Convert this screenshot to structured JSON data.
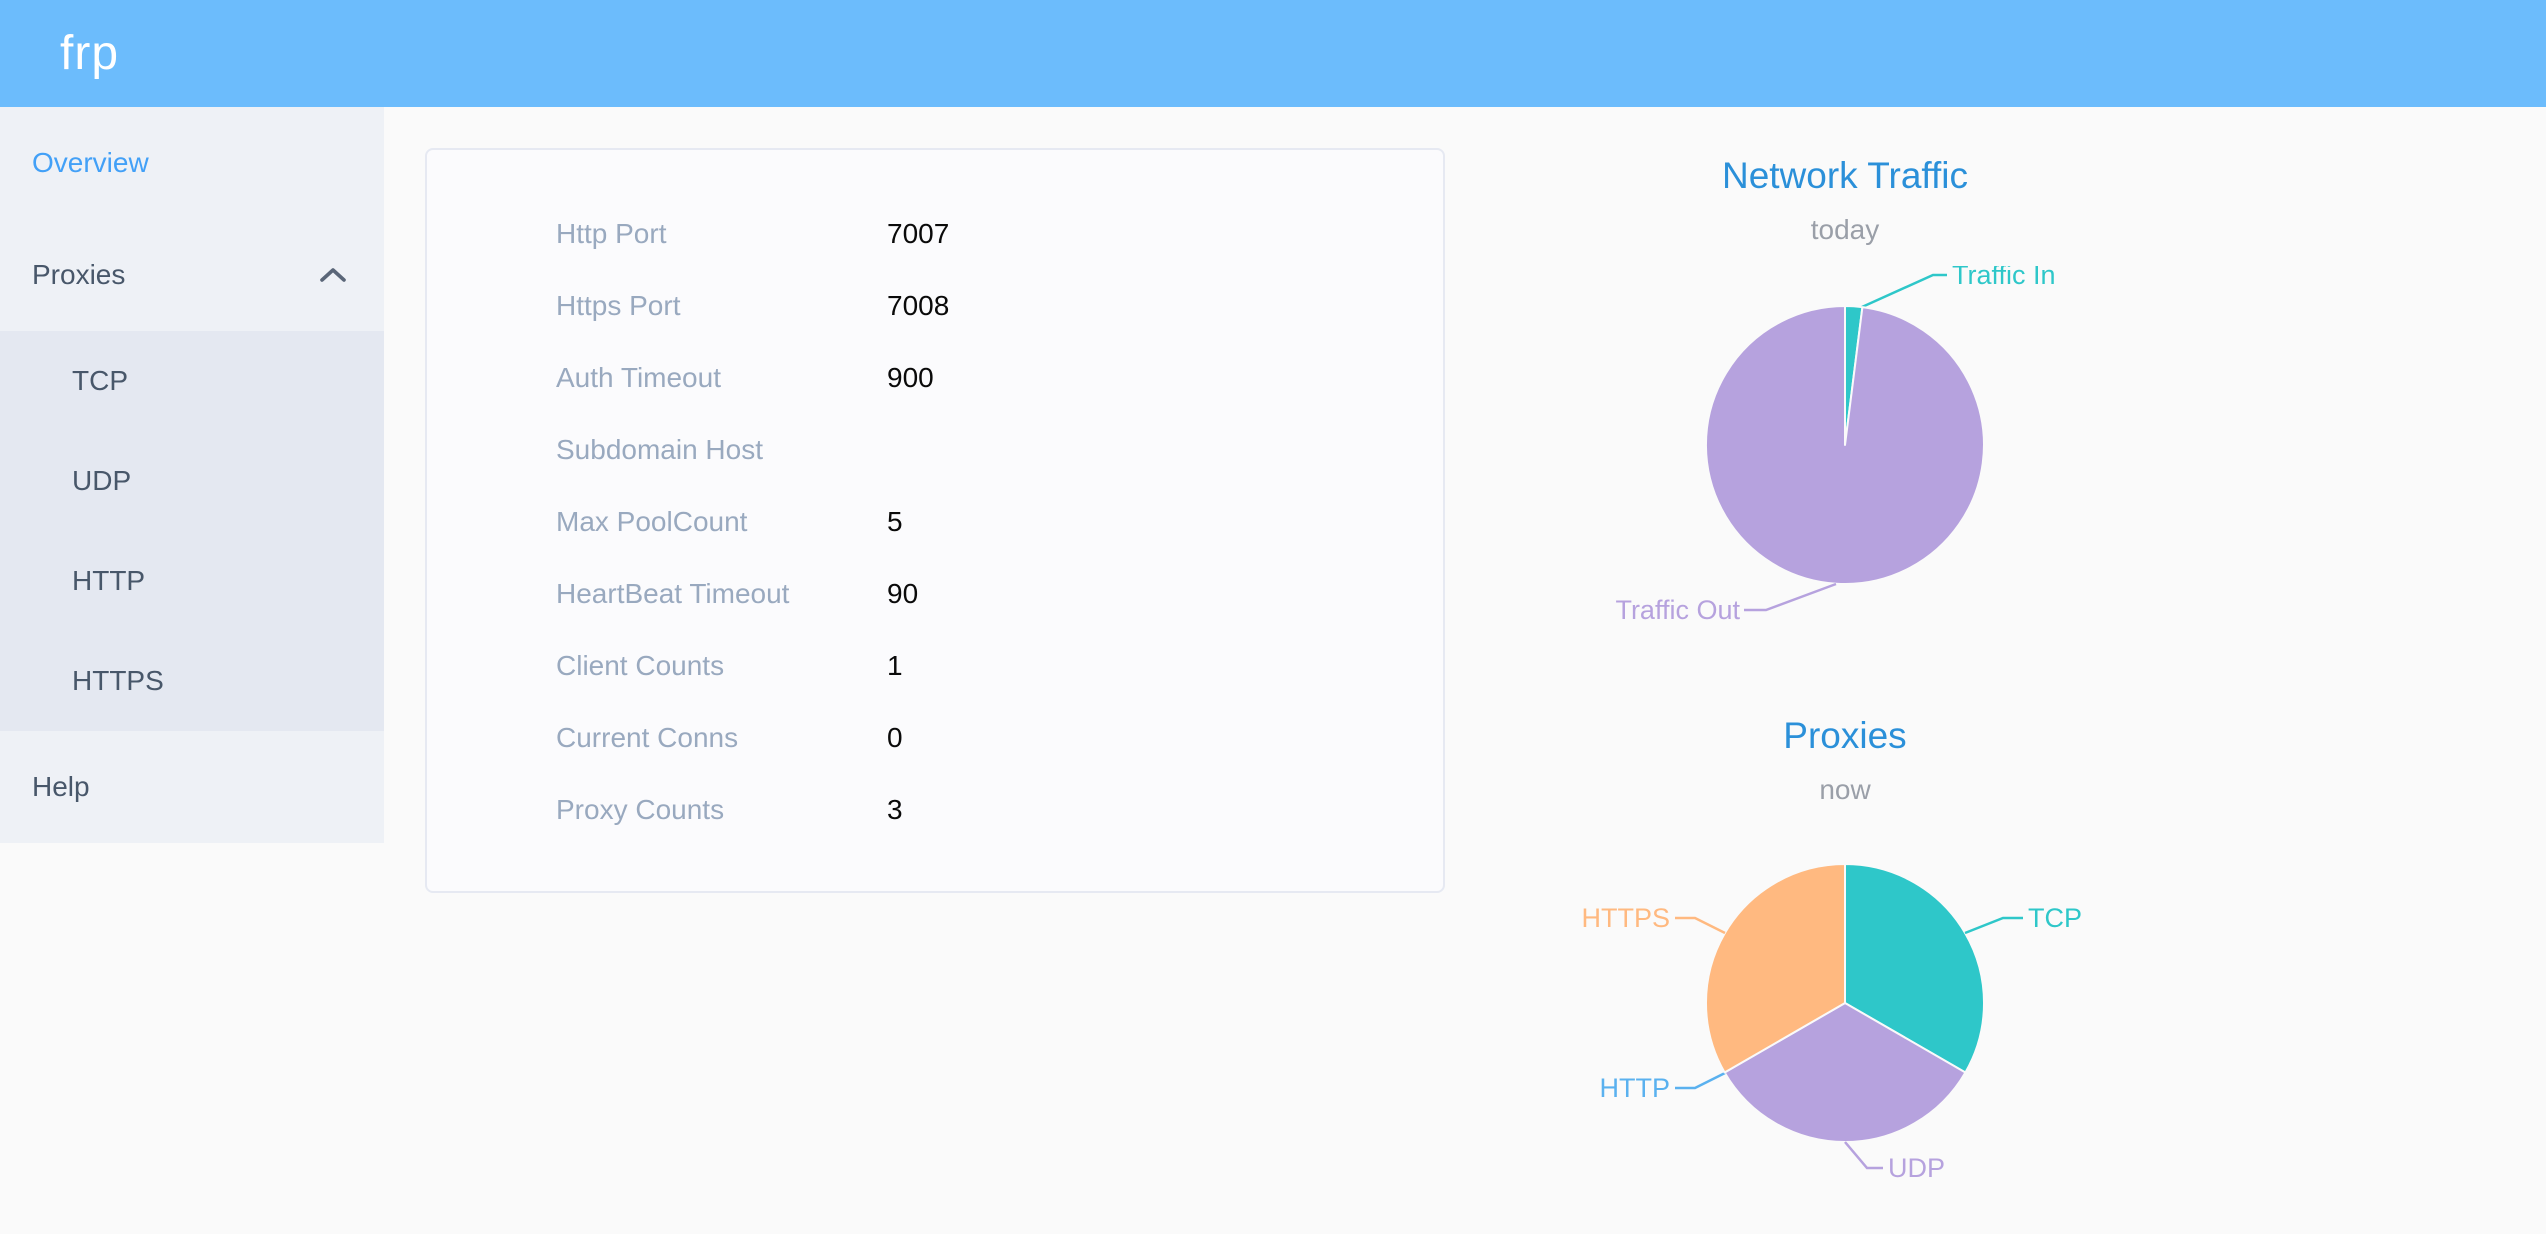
{
  "header": {
    "logo_text": "frp",
    "background_color": "#6cbcfc"
  },
  "sidebar": {
    "items": [
      {
        "label": "Overview",
        "active": true
      },
      {
        "label": "Proxies",
        "expanded": true,
        "children": [
          {
            "label": "TCP"
          },
          {
            "label": "UDP"
          },
          {
            "label": "HTTP"
          },
          {
            "label": "HTTPS"
          }
        ]
      },
      {
        "label": "Help",
        "active": false
      }
    ],
    "active_color": "#42a0f7",
    "text_color": "#48576a"
  },
  "overview_card": {
    "rows": [
      {
        "label": "Http Port",
        "value": "7007"
      },
      {
        "label": "Https Port",
        "value": "7008"
      },
      {
        "label": "Auth Timeout",
        "value": "900"
      },
      {
        "label": "Subdomain Host",
        "value": ""
      },
      {
        "label": "Max PoolCount",
        "value": "5"
      },
      {
        "label": "HeartBeat Timeout",
        "value": "90"
      },
      {
        "label": "Client Counts",
        "value": "1"
      },
      {
        "label": "Current Conns",
        "value": "0"
      },
      {
        "label": "Proxy Counts",
        "value": "3"
      }
    ]
  },
  "charts": [
    {
      "title": "Network Traffic",
      "subtitle": "today",
      "type": "pie",
      "slices": [
        {
          "label": "Traffic In",
          "color": "#2ec7c9",
          "value": 2
        },
        {
          "label": "Traffic Out",
          "color": "#b6a2de",
          "value": 98
        }
      ]
    },
    {
      "title": "Proxies",
      "subtitle": "now",
      "type": "pie",
      "slices": [
        {
          "label": "TCP",
          "color": "#2ec7c9",
          "value": 1
        },
        {
          "label": "UDP",
          "color": "#b6a2de",
          "value": 1
        },
        {
          "label": "HTTP",
          "color": "#5ab1ef",
          "value": 0
        },
        {
          "label": "HTTPS",
          "color": "#ffb980",
          "value": 1
        }
      ]
    }
  ],
  "chart_data": [
    {
      "type": "pie",
      "title": "Network Traffic",
      "subtitle": "today",
      "categories": [
        "Traffic In",
        "Traffic Out"
      ],
      "values": [
        2,
        98
      ],
      "colors": [
        "#2ec7c9",
        "#b6a2de"
      ]
    },
    {
      "type": "pie",
      "title": "Proxies",
      "subtitle": "now",
      "categories": [
        "TCP",
        "UDP",
        "HTTP",
        "HTTPS"
      ],
      "values": [
        1,
        1,
        0,
        1
      ],
      "colors": [
        "#2ec7c9",
        "#b6a2de",
        "#5ab1ef",
        "#ffb980"
      ]
    }
  ]
}
